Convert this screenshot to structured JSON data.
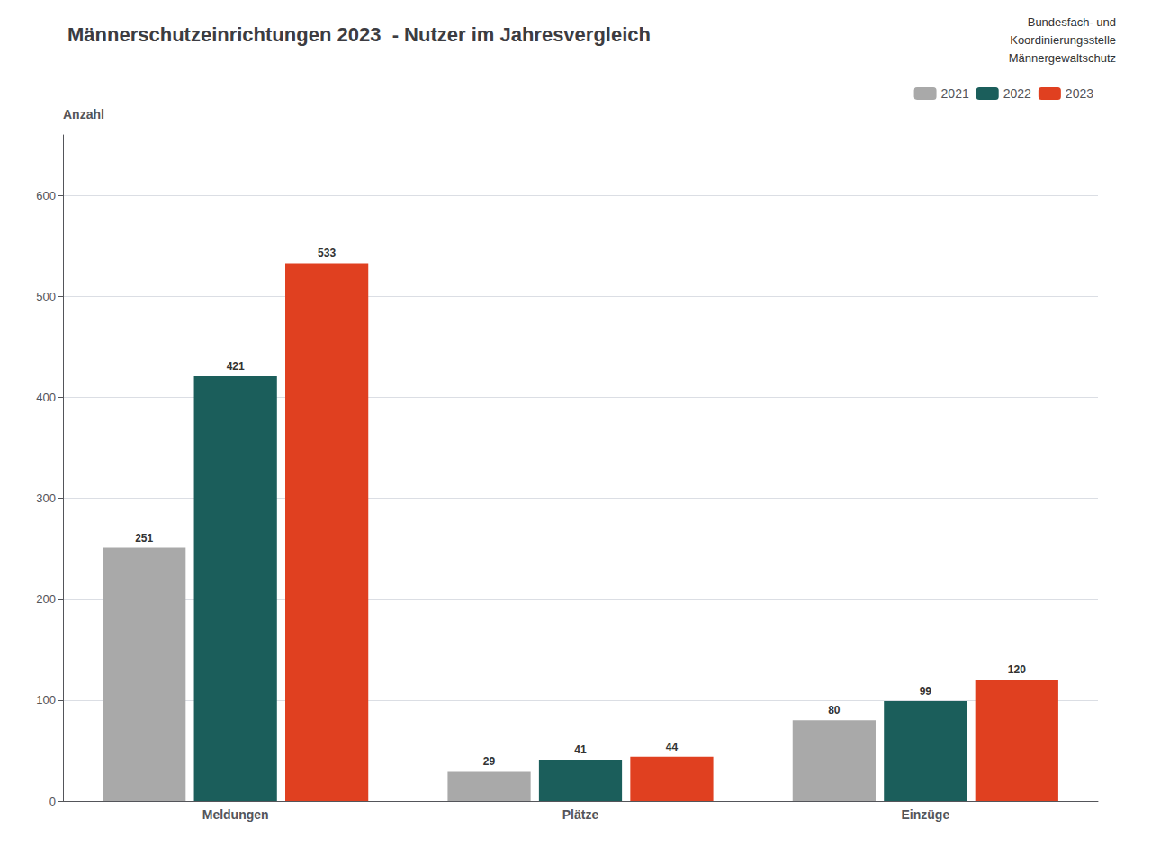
{
  "chart_data": {
    "type": "bar",
    "title": "Männerschutzeinrichtungen 2023  - Nutzer im Jahresvergleich",
    "ylabel": "Anzahl",
    "categories": [
      "Meldungen",
      "Plätze",
      "Einzüge"
    ],
    "series": [
      {
        "name": "2021",
        "color": "#a9a9a9",
        "values": [
          251,
          29,
          80
        ]
      },
      {
        "name": "2022",
        "color": "#1b5e5b",
        "values": [
          421,
          41,
          99
        ]
      },
      {
        "name": "2023",
        "color": "#e04020",
        "values": [
          533,
          44,
          120
        ]
      }
    ],
    "ylim": [
      0,
      660
    ],
    "yticks": [
      0,
      100,
      200,
      300,
      400,
      500,
      600
    ],
    "grid": true,
    "legend": "upper right",
    "data_labels": true,
    "annotations": [
      "Bundesfach- und",
      "Koordinierungsstelle",
      "Männergewaltschutz"
    ]
  }
}
